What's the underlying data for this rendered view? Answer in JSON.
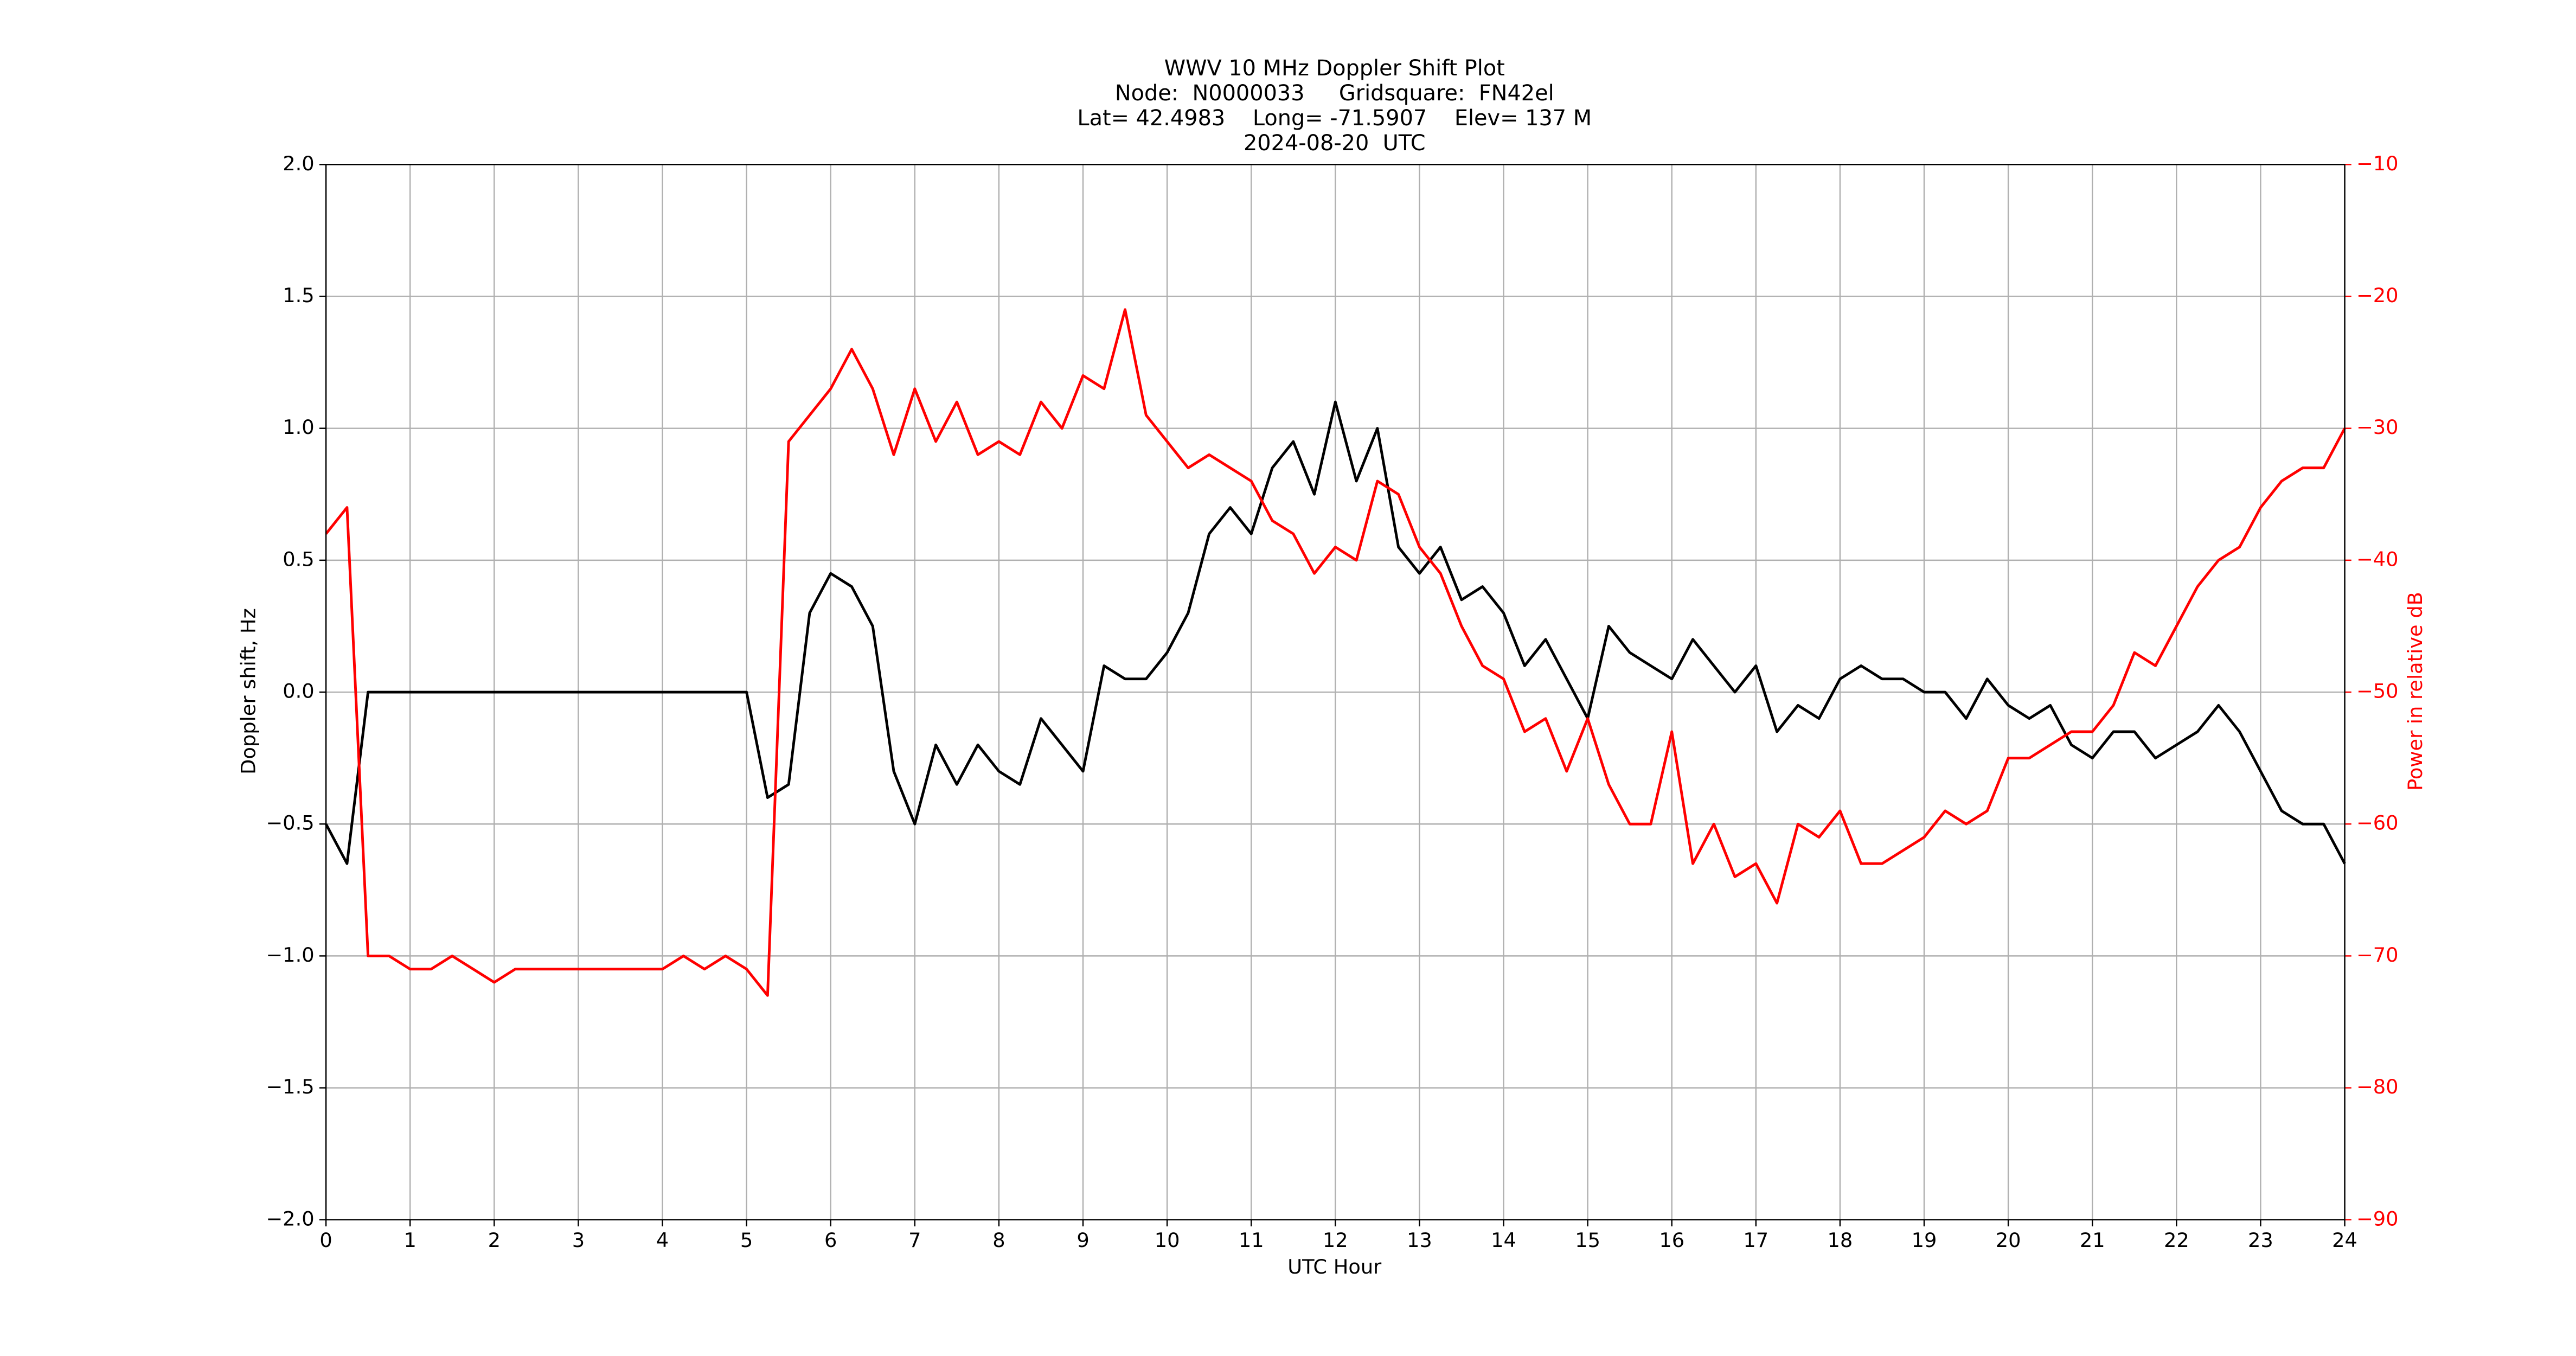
{
  "chart_data": {
    "type": "line",
    "title": [
      "WWV 10 MHz Doppler Shift Plot",
      "Node:  N0000033     Gridsquare:  FN42el",
      "Lat= 42.4983    Long= -71.5907    Elev= 137 M",
      "2024-08-20  UTC"
    ],
    "x_label": "UTC Hour",
    "y_label": "Doppler shift, Hz",
    "y2_label": "Power in relative dB",
    "x": [
      0,
      0.25,
      0.5,
      0.75,
      1,
      1.25,
      1.5,
      1.75,
      2,
      2.25,
      2.5,
      2.75,
      3,
      3.25,
      3.5,
      3.75,
      4,
      4.25,
      4.5,
      4.75,
      5,
      5.25,
      5.5,
      5.75,
      6,
      6.25,
      6.5,
      6.75,
      7,
      7.25,
      7.5,
      7.75,
      8,
      8.25,
      8.5,
      8.75,
      9,
      9.25,
      9.5,
      9.75,
      10,
      10.25,
      10.5,
      10.75,
      11,
      11.25,
      11.5,
      11.75,
      12,
      12.25,
      12.5,
      12.75,
      13,
      13.25,
      13.5,
      13.75,
      14,
      14.25,
      14.5,
      14.75,
      15,
      15.25,
      15.5,
      15.75,
      16,
      16.25,
      16.5,
      16.75,
      17,
      17.25,
      17.5,
      17.75,
      18,
      18.25,
      18.5,
      18.75,
      19,
      19.25,
      19.5,
      19.75,
      20,
      20.25,
      20.5,
      20.75,
      21,
      21.25,
      21.5,
      21.75,
      22,
      22.25,
      22.5,
      22.75,
      23,
      23.25,
      23.5,
      23.75,
      24
    ],
    "series": [
      {
        "name": "Doppler shift",
        "color": "#000000",
        "axis": "y",
        "values": [
          -0.5,
          -0.65,
          0.0,
          0,
          0,
          0,
          0,
          0,
          0,
          0,
          0,
          0,
          0,
          0,
          0,
          0,
          0,
          0,
          0,
          0,
          0,
          -0.4,
          -0.35,
          0.3,
          0.45,
          0.4,
          0.25,
          -0.3,
          -0.5,
          -0.2,
          -0.35,
          -0.2,
          -0.3,
          -0.35,
          -0.1,
          -0.2,
          -0.3,
          0.1,
          0.05,
          0.05,
          0.15,
          0.3,
          0.6,
          0.7,
          0.6,
          0.85,
          0.95,
          0.75,
          1.1,
          0.8,
          1.0,
          0.55,
          0.45,
          0.55,
          0.35,
          0.4,
          0.3,
          0.1,
          0.2,
          0.05,
          -0.1,
          0.25,
          0.15,
          0.1,
          0.05,
          0.2,
          0.1,
          0.0,
          0.1,
          -0.15,
          -0.05,
          -0.1,
          0.05,
          0.1,
          0.05,
          0.05,
          0.0,
          0.0,
          -0.1,
          0.05,
          -0.05,
          -0.1,
          -0.05,
          -0.2,
          -0.25,
          -0.15,
          -0.15,
          -0.25,
          -0.2,
          -0.15,
          -0.05,
          -0.15,
          -0.3,
          -0.45,
          -0.5,
          -0.5,
          -0.65
        ]
      },
      {
        "name": "Power",
        "color": "#ff0000",
        "axis": "y2",
        "values": [
          -38,
          -36,
          -70,
          -70,
          -71,
          -71,
          -70,
          -71,
          -72,
          -71,
          -71,
          -71,
          -71,
          -71,
          -71,
          -71,
          -71,
          -70,
          -71,
          -70,
          -71,
          -73,
          -31,
          -29,
          -27,
          -24,
          -27,
          -32,
          -27,
          -31,
          -28,
          -32,
          -31,
          -32,
          -28,
          -30,
          -26,
          -27,
          -21,
          -29,
          -31,
          -33,
          -32,
          -33,
          -34,
          -37,
          -38,
          -41,
          -39,
          -40,
          -34,
          -35,
          -39,
          -41,
          -45,
          -48,
          -49,
          -53,
          -52,
          -56,
          -52,
          -57,
          -60,
          -60,
          -53,
          -63,
          -60,
          -64,
          -63,
          -66,
          -60,
          -61,
          -59,
          -63,
          -63,
          -62,
          -61,
          -59,
          -60,
          -59,
          -55,
          -55,
          -54,
          -53,
          -53,
          -51,
          -47,
          -48,
          -45,
          -42,
          -40,
          -39,
          -36,
          -34,
          -33,
          -33,
          -30
        ]
      }
    ],
    "xlim": [
      0,
      24
    ],
    "xticks": [
      0,
      1,
      2,
      3,
      4,
      5,
      6,
      7,
      8,
      9,
      10,
      11,
      12,
      13,
      14,
      15,
      16,
      17,
      18,
      19,
      20,
      21,
      22,
      23,
      24
    ],
    "ylim": [
      -2,
      2
    ],
    "yticks": [
      {
        "value": -2,
        "label": "−2.0"
      },
      {
        "value": -1.5,
        "label": "−1.5"
      },
      {
        "value": -1,
        "label": "−1.0"
      },
      {
        "value": -0.5,
        "label": "−0.5"
      },
      {
        "value": 0,
        "label": "0.0"
      },
      {
        "value": 0.5,
        "label": "0.5"
      },
      {
        "value": 1,
        "label": "1.0"
      },
      {
        "value": 1.5,
        "label": "1.5"
      },
      {
        "value": 2,
        "label": "2.0"
      }
    ],
    "y2lim": [
      -90,
      -10
    ],
    "y2ticks": [
      {
        "value": -90,
        "label": "−90"
      },
      {
        "value": -80,
        "label": "−80"
      },
      {
        "value": -70,
        "label": "−70"
      },
      {
        "value": -60,
        "label": "−60"
      },
      {
        "value": -50,
        "label": "−50"
      },
      {
        "value": -40,
        "label": "−40"
      },
      {
        "value": -30,
        "label": "−30"
      },
      {
        "value": -20,
        "label": "−20"
      },
      {
        "value": -10,
        "label": "−10"
      }
    ],
    "y2_color": "#ff0000",
    "grid": true
  }
}
